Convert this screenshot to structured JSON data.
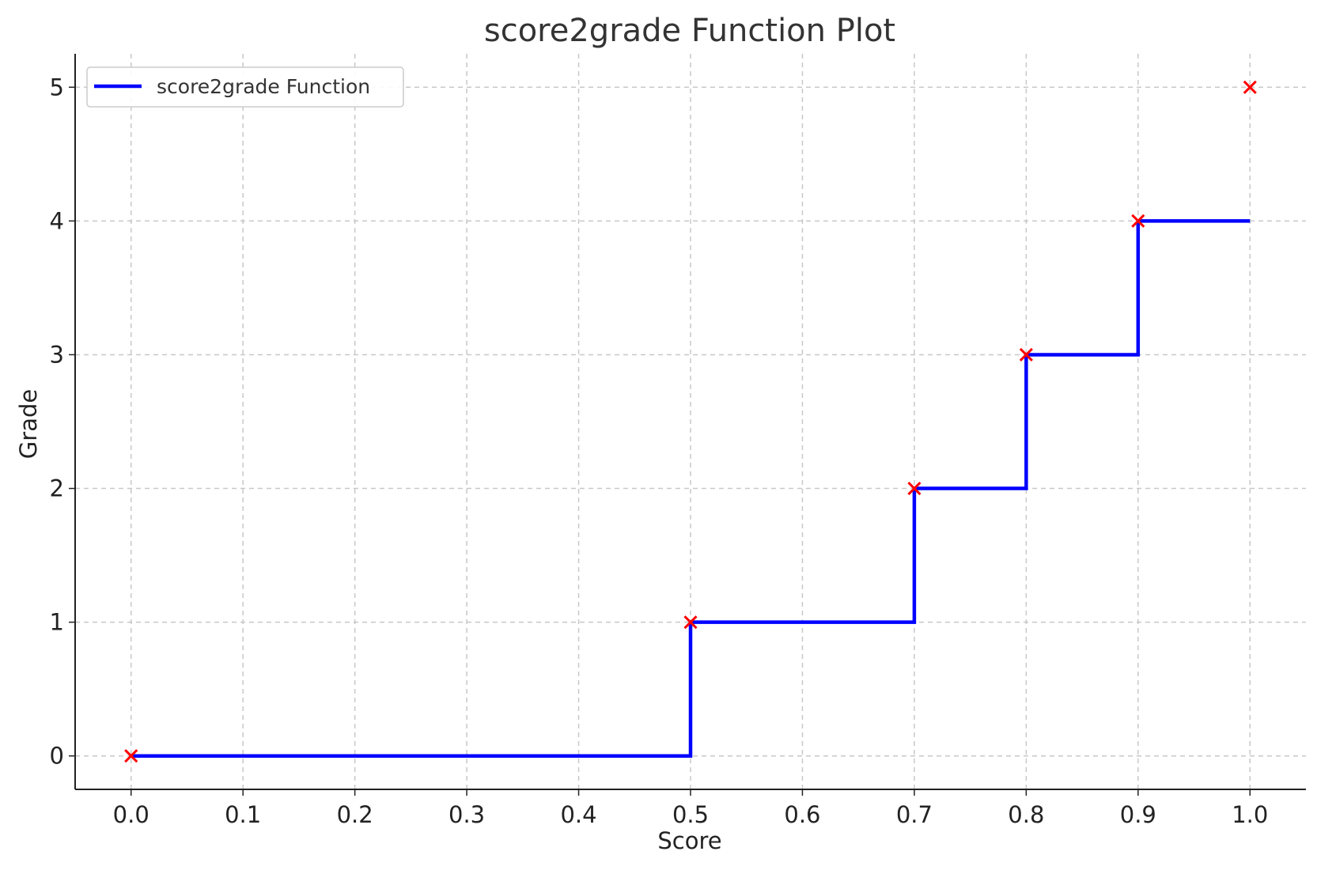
{
  "chart_data": {
    "type": "line",
    "title": "score2grade Function Plot",
    "xlabel": "Score",
    "ylabel": "Grade",
    "xlim": [
      -0.05,
      1.05
    ],
    "ylim": [
      -0.25,
      5.25
    ],
    "x_ticks": [
      0.0,
      0.1,
      0.2,
      0.3,
      0.4,
      0.5,
      0.6,
      0.7,
      0.8,
      0.9,
      1.0
    ],
    "x_tick_labels": [
      "0.0",
      "0.1",
      "0.2",
      "0.3",
      "0.4",
      "0.5",
      "0.6",
      "0.7",
      "0.8",
      "0.9",
      "1.0"
    ],
    "y_ticks": [
      0,
      1,
      2,
      3,
      4,
      5
    ],
    "y_tick_labels": [
      "0",
      "1",
      "2",
      "3",
      "4",
      "5"
    ],
    "grid": true,
    "legend_position": "top-left",
    "series": [
      {
        "name": "score2grade Function",
        "kind": "step",
        "color": "#0000ff",
        "points": [
          {
            "x": 0.0,
            "y": 0
          },
          {
            "x": 0.5,
            "y": 0
          },
          {
            "x": 0.5,
            "y": 1
          },
          {
            "x": 0.7,
            "y": 1
          },
          {
            "x": 0.7,
            "y": 2
          },
          {
            "x": 0.8,
            "y": 2
          },
          {
            "x": 0.8,
            "y": 3
          },
          {
            "x": 0.9,
            "y": 3
          },
          {
            "x": 0.9,
            "y": 4
          },
          {
            "x": 1.0,
            "y": 4
          }
        ]
      },
      {
        "kind": "scatter",
        "marker": "x",
        "color": "#ff0000",
        "points": [
          {
            "x": 0.0,
            "y": 0
          },
          {
            "x": 0.5,
            "y": 1
          },
          {
            "x": 0.7,
            "y": 2
          },
          {
            "x": 0.8,
            "y": 3
          },
          {
            "x": 0.9,
            "y": 4
          },
          {
            "x": 1.0,
            "y": 5
          }
        ]
      }
    ]
  }
}
